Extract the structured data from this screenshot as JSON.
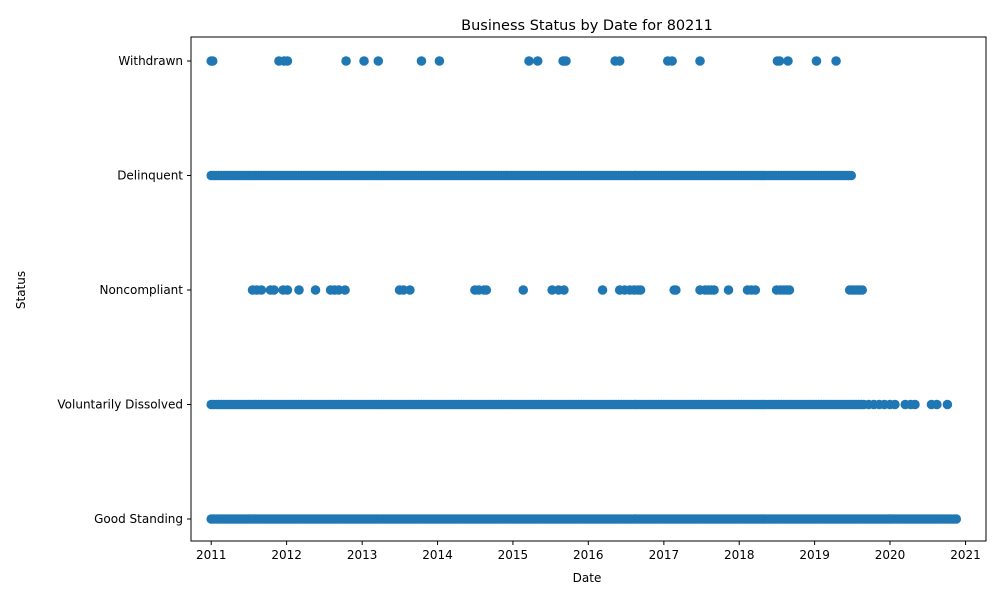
{
  "chart_data": {
    "type": "scatter",
    "title": "Business Status by Date for 80211",
    "xlabel": "Date",
    "ylabel": "Status",
    "categories": [
      "Good Standing",
      "Voluntarily Dissolved",
      "Noncompliant",
      "Delinquent",
      "Withdrawn"
    ],
    "xlim": [
      "2010-09-25",
      "2021-04-10"
    ],
    "x_ticks": [
      "2011",
      "2012",
      "2013",
      "2014",
      "2015",
      "2016",
      "2017",
      "2018",
      "2019",
      "2020",
      "2021"
    ],
    "grid": false,
    "marker_color": "#1f77b4",
    "series": [
      {
        "category": "Withdrawn",
        "dense_ranges": [],
        "points": [
          "2011-01-01",
          "2011-01-08",
          "2011-11-25",
          "2011-12-20",
          "2012-01-05",
          "2012-10-15",
          "2013-01-10",
          "2013-03-20",
          "2013-10-15",
          "2014-01-10",
          "2015-03-20",
          "2015-05-01",
          "2015-09-01",
          "2015-09-08",
          "2015-09-15",
          "2016-05-10",
          "2016-06-01",
          "2017-01-20",
          "2017-02-10",
          "2017-06-25",
          "2018-07-05",
          "2018-07-15",
          "2018-08-25",
          "2019-01-10",
          "2019-04-15"
        ]
      },
      {
        "category": "Delinquent",
        "dense_ranges": [
          [
            "2011-01-01",
            "2019-07-01"
          ]
        ],
        "points": []
      },
      {
        "category": "Noncompliant",
        "dense_ranges": [
          [
            "2019-06-20",
            "2019-08-28"
          ]
        ],
        "points": [
          "2011-07-20",
          "2011-08-10",
          "2011-09-01",
          "2011-10-15",
          "2011-11-01",
          "2011-12-15",
          "2012-01-05",
          "2012-03-01",
          "2012-05-20",
          "2012-08-01",
          "2012-08-20",
          "2012-09-10",
          "2012-10-10",
          "2013-07-01",
          "2013-07-20",
          "2013-08-20",
          "2014-07-01",
          "2014-07-20",
          "2014-08-15",
          "2014-08-25",
          "2015-02-20",
          "2015-07-10",
          "2015-08-10",
          "2015-09-05",
          "2016-03-10",
          "2016-06-01",
          "2016-06-25",
          "2016-07-20",
          "2016-08-10",
          "2016-08-30",
          "2016-09-10",
          "2017-02-20",
          "2017-02-28",
          "2017-06-25",
          "2017-07-20",
          "2017-08-05",
          "2017-08-20",
          "2017-09-01",
          "2017-11-10",
          "2018-02-10",
          "2018-03-01",
          "2018-03-20",
          "2018-07-01",
          "2018-07-20",
          "2018-08-05",
          "2018-08-20",
          "2018-09-01"
        ]
      },
      {
        "category": "Voluntarily Dissolved",
        "dense_ranges": [
          [
            "2011-01-01",
            "2019-09-01"
          ]
        ],
        "points": [
          "2019-09-20",
          "2019-10-15",
          "2019-11-10",
          "2019-12-05",
          "2020-01-01",
          "2020-01-25",
          "2020-03-15",
          "2020-04-10",
          "2020-05-01",
          "2020-07-20",
          "2020-08-15",
          "2020-10-05"
        ]
      },
      {
        "category": "Good Standing",
        "dense_ranges": [
          [
            "2011-01-01",
            "2020-11-20"
          ]
        ],
        "points": []
      }
    ]
  }
}
